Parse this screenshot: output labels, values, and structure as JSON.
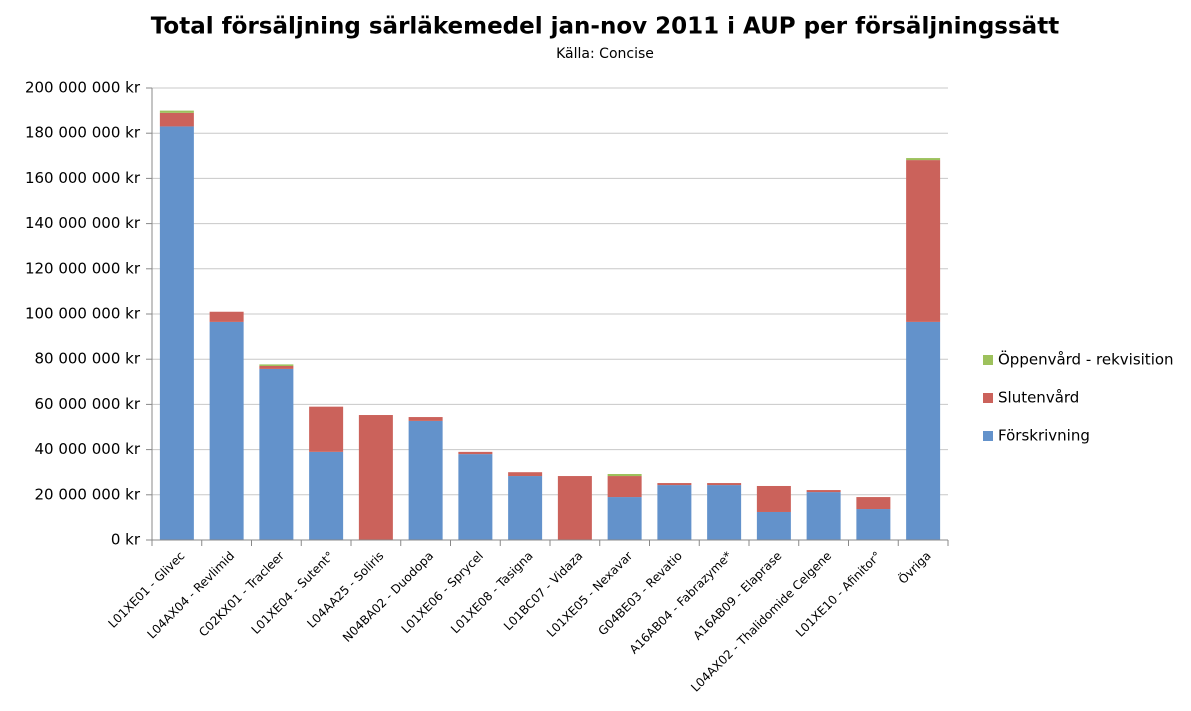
{
  "chart_data": {
    "type": "stacked_bar",
    "title": "Total försäljning särläkemedel jan-nov 2011 i AUP per försäljningssätt",
    "subtitle": "Källa: Concise",
    "categories": [
      "L01XE01 - Glivec",
      "L04AX04 - Revlimid",
      "C02KX01 - Tracleer",
      "L01XE04 - Sutent°",
      "L04AA25 - Soliris",
      "N04BA02 - Duodopa",
      "L01XE06 - Sprycel",
      "L01XE08 - Tasigna",
      "L01BC07 - Vidaza",
      "L01XE05 - Nexavar",
      "G04BE03 - Revatio",
      "A16AB04 - Fabrazyme*",
      "A16AB09 - Elaprase",
      "L04AX02 - Thalidomide Celgene",
      "L01XE10 - Afinitor°",
      "Övriga"
    ],
    "series": [
      {
        "name": "Förskrivning",
        "color": "#6392cb",
        "values": [
          183000000,
          96500000,
          75700000,
          39000000,
          0,
          52700000,
          38000000,
          28300000,
          0,
          19000000,
          24300000,
          24300000,
          12400000,
          21200000,
          13700000,
          96500000
        ]
      },
      {
        "name": "Slutenvård",
        "color": "#cb625b",
        "values": [
          6000000,
          4500000,
          1300000,
          20000000,
          55300000,
          1700000,
          1000000,
          1700000,
          28300000,
          9300000,
          900000,
          900000,
          11500000,
          900000,
          5300000,
          71600000
        ]
      },
      {
        "name": "Öppenvård - rekvisition",
        "color": "#9dc15c",
        "values": [
          1000000,
          0,
          700000,
          0,
          0,
          0,
          0,
          0,
          0,
          900000,
          0,
          0,
          0,
          0,
          0,
          900000
        ]
      }
    ],
    "ylim": [
      0,
      200000000
    ],
    "yticks": [
      {
        "value": 0,
        "label": "0 kr"
      },
      {
        "value": 20000000,
        "label": "20 000 000 kr"
      },
      {
        "value": 40000000,
        "label": "40 000 000 kr"
      },
      {
        "value": 60000000,
        "label": "60 000 000 kr"
      },
      {
        "value": 80000000,
        "label": "80 000 000 kr"
      },
      {
        "value": 100000000,
        "label": "100 000 000 kr"
      },
      {
        "value": 120000000,
        "label": "120 000 000 kr"
      },
      {
        "value": 140000000,
        "label": "140 000 000 kr"
      },
      {
        "value": 160000000,
        "label": "160 000 000 kr"
      },
      {
        "value": 180000000,
        "label": "180 000 000 kr"
      },
      {
        "value": 200000000,
        "label": "200 000 000 kr"
      }
    ],
    "grid": true,
    "legend": "right"
  }
}
